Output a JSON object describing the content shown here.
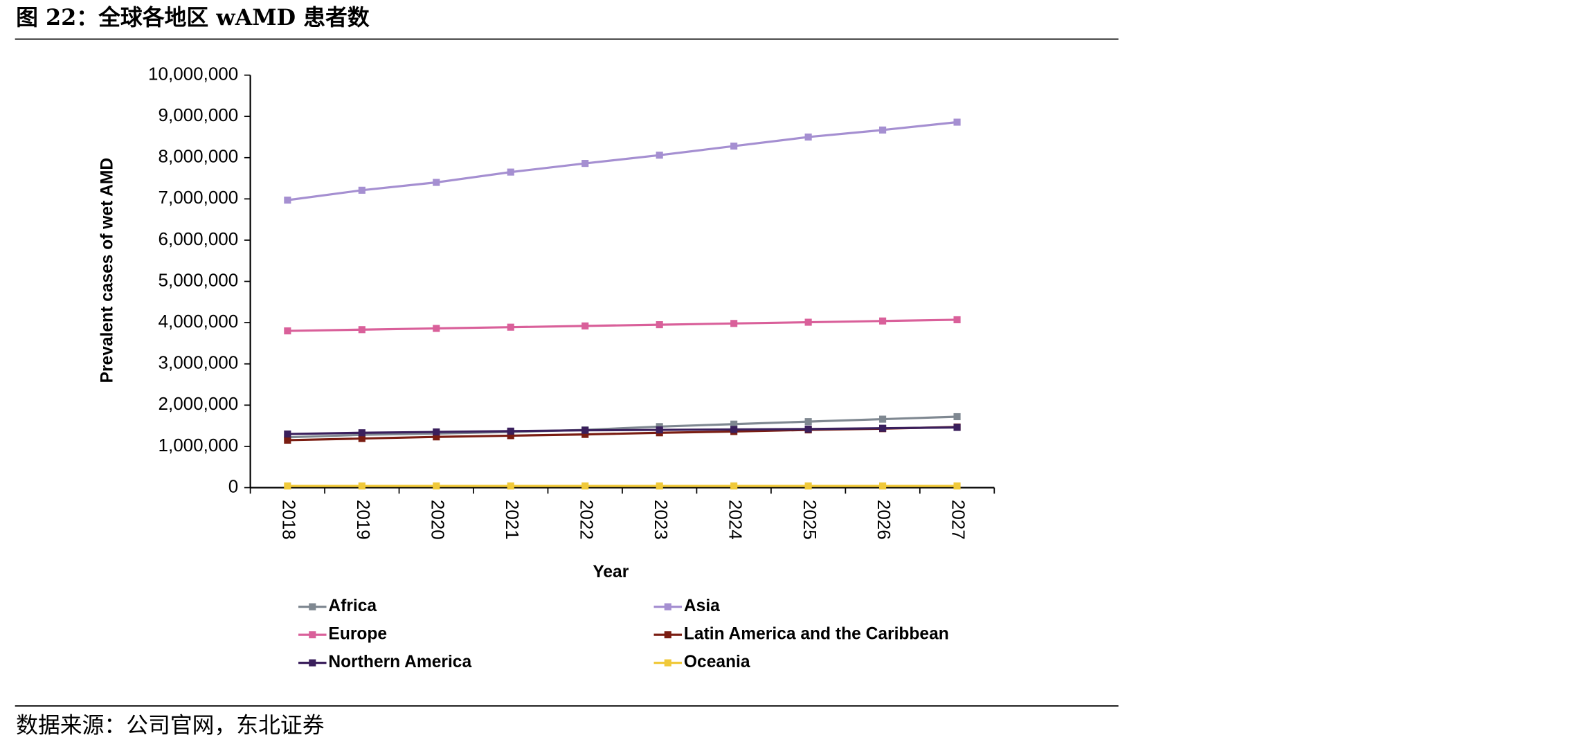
{
  "chart_data": {
    "type": "line",
    "title": "图 22：全球各地区 wAMD 患者数",
    "source": "数据来源：公司官网，东北证券",
    "y_label": "Prevalent cases of wet AMD",
    "x_label": "Year",
    "categories": [
      "2018",
      "2019",
      "2020",
      "2021",
      "2022",
      "2023",
      "2024",
      "2025",
      "2026",
      "2027"
    ],
    "ylim": [
      0,
      10000000
    ],
    "yticks": [
      0,
      {
        "value": 1000000,
        "label": "1,000,000"
      },
      {
        "value": 2000000,
        "label": "2,000,000"
      },
      {
        "value": 3000000,
        "label": "3,000,000"
      },
      {
        "value": 4000000,
        "label": "4,000,000"
      },
      {
        "value": 5000000,
        "label": "5,000,000"
      },
      {
        "value": 6000000,
        "label": "6,000,000"
      },
      {
        "value": 7000000,
        "label": "7,000,000"
      },
      {
        "value": 8000000,
        "label": "8,000,000"
      },
      {
        "value": 9000000,
        "label": "9,000,000"
      },
      {
        "value": 10000000,
        "label": "10,000,000"
      }
    ],
    "grid": false,
    "series": [
      {
        "name": "Africa",
        "color": "#7f8891",
        "values": [
          1220000,
          1280000,
          1310000,
          1350000,
          1400000,
          1480000,
          1540000,
          1600000,
          1660000,
          1720000
        ]
      },
      {
        "name": "Asia",
        "color": "#a58fd1",
        "values": [
          6970000,
          7210000,
          7400000,
          7650000,
          7860000,
          8060000,
          8280000,
          8500000,
          8670000,
          8860000
        ]
      },
      {
        "name": "Europe",
        "color": "#d9609a",
        "values": [
          3800000,
          3830000,
          3860000,
          3890000,
          3920000,
          3950000,
          3980000,
          4010000,
          4040000,
          4070000
        ]
      },
      {
        "name": "Latin America and the Caribbean",
        "color": "#7a1d12",
        "values": [
          1150000,
          1190000,
          1230000,
          1260000,
          1290000,
          1330000,
          1360000,
          1400000,
          1430000,
          1470000
        ]
      },
      {
        "name": "Northern America",
        "color": "#3a1f5c",
        "values": [
          1300000,
          1330000,
          1350000,
          1370000,
          1390000,
          1400000,
          1410000,
          1420000,
          1440000,
          1460000
        ]
      },
      {
        "name": "Oceania",
        "color": "#f0c93a",
        "values": [
          40000,
          40000,
          40000,
          40000,
          40000,
          40000,
          40000,
          40000,
          40000,
          40000
        ]
      }
    ]
  }
}
